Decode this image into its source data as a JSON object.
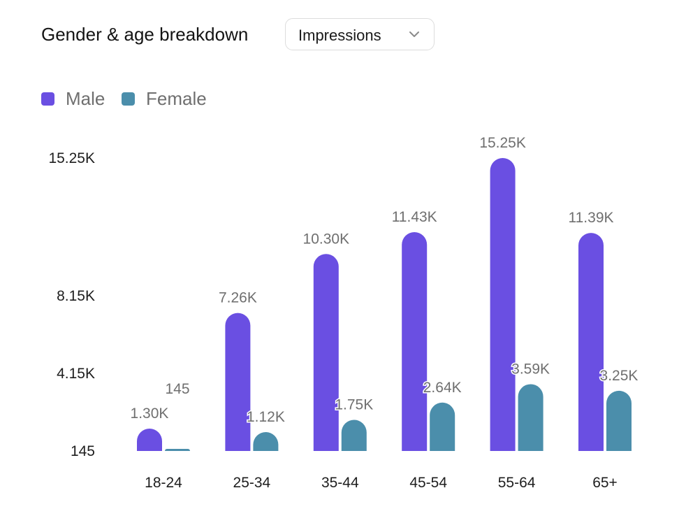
{
  "header": {
    "title": "Gender & age breakdown",
    "metric_select": {
      "value": "Impressions",
      "icon": "chevron-down-icon"
    }
  },
  "colors": {
    "male": "#6a4fe2",
    "female": "#4b8eab",
    "axis_text": "#1e1e1e",
    "label_text": "#6f6f6f"
  },
  "chart_data": {
    "type": "bar",
    "title": "Gender & age breakdown",
    "xlabel": "",
    "ylabel": "",
    "categories": [
      "18-24",
      "25-34",
      "35-44",
      "45-54",
      "55-64",
      "65+"
    ],
    "series": [
      {
        "name": "Male",
        "values": [
          1300,
          7260,
          10300,
          11430,
          15250,
          11390
        ],
        "labels": [
          "1.30K",
          "7.26K",
          "10.30K",
          "11.43K",
          "15.25K",
          "11.39K"
        ]
      },
      {
        "name": "Female",
        "values": [
          145,
          1120,
          1750,
          2640,
          3590,
          3250
        ],
        "labels": [
          "145",
          "1.12K",
          "1.75K",
          "2.64K",
          "3.59K",
          "3.25K"
        ]
      }
    ],
    "y_ticks": [
      {
        "value": 145,
        "label": "145"
      },
      {
        "value": 4150,
        "label": "4.15K"
      },
      {
        "value": 8150,
        "label": "8.15K"
      },
      {
        "value": 15250,
        "label": "15.25K"
      }
    ],
    "ylim": [
      145,
      15250
    ],
    "grid": false,
    "legend_position": "top-left"
  }
}
